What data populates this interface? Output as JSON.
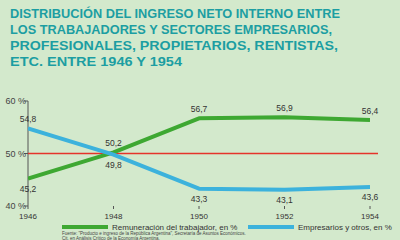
{
  "chart_data": {
    "type": "line",
    "title": [
      "DISTRIBUCIÓN DEL INGRESO NETO INTERNO ENTRE",
      "LOS TRABAJADORES Y SECTORES EMPRESARIOS,",
      "PROFESIONALES, PROPIETARIOS, RENTISTAS,",
      "ETC. ENTRE 1946 Y 1954"
    ],
    "categories": [
      "1946",
      "1948",
      "1950",
      "1952",
      "1954"
    ],
    "series": [
      {
        "name": "Remuneración del trabajador, en %",
        "color": "#3ea832",
        "values": [
          45.2,
          50.2,
          56.7,
          56.9,
          56.4
        ],
        "value_labels": [
          "45,2",
          "50,2",
          "56,7",
          "56,9",
          "56,4"
        ]
      },
      {
        "name": "Empresarios y otros, en %",
        "color": "#3cb2dc",
        "values": [
          54.8,
          49.8,
          43.3,
          43.1,
          43.6
        ],
        "value_labels": [
          "54,8",
          "49,8",
          "43,3",
          "43,1",
          "43,6"
        ]
      }
    ],
    "ylim": [
      40,
      60
    ],
    "yticks": [
      {
        "value": 40,
        "label": "40 %"
      },
      {
        "value": 50,
        "label": "50 %"
      },
      {
        "value": 60,
        "label": "60 %"
      }
    ],
    "reference_line": {
      "value": 50,
      "color": "#e5342a"
    },
    "data_labels": true,
    "grid": false,
    "legend": "bottom",
    "source": [
      "Fuente: \"Producto e ingreso de la República Argentina\", Secretaría de Asuntos Económicos.",
      "Cit. en Análisis Crítico de la Economía Argentina."
    ]
  }
}
